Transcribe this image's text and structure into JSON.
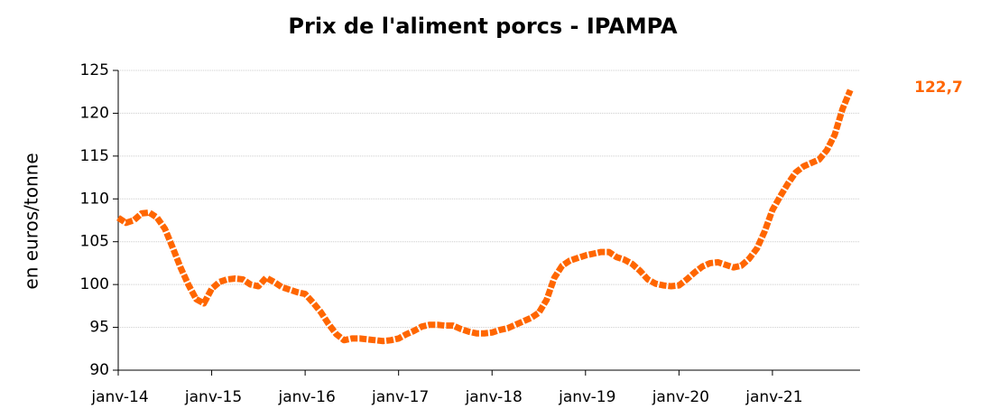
{
  "chart_data": {
    "type": "line",
    "title": "Prix de l'aliment porcs - IPAMPA",
    "y_label": "en euros/tonne",
    "categories": [
      "janv-14",
      null,
      null,
      null,
      null,
      null,
      null,
      null,
      null,
      null,
      null,
      null,
      "janv-15",
      null,
      null,
      null,
      null,
      null,
      null,
      null,
      null,
      null,
      null,
      null,
      "janv-16",
      null,
      null,
      null,
      null,
      null,
      null,
      null,
      null,
      null,
      null,
      null,
      "janv-17",
      null,
      null,
      null,
      null,
      null,
      null,
      null,
      null,
      null,
      null,
      null,
      "janv-18",
      null,
      null,
      null,
      null,
      null,
      null,
      null,
      null,
      null,
      null,
      null,
      "janv-19",
      null,
      null,
      null,
      null,
      null,
      null,
      null,
      null,
      null,
      null,
      null,
      "janv-20",
      null,
      null,
      null,
      null,
      null,
      null,
      null,
      null,
      null,
      null,
      null,
      "janv-21",
      null,
      null,
      null,
      null,
      null,
      null,
      null,
      null,
      null,
      null
    ],
    "values": [
      107.8,
      107.2,
      107.5,
      108.3,
      108.4,
      107.8,
      106.5,
      104.3,
      102,
      100,
      98.3,
      97.8,
      99.5,
      100.3,
      100.6,
      100.7,
      100.6,
      100,
      99.8,
      100.8,
      100.3,
      99.7,
      99.4,
      99.1,
      98.9,
      97.9,
      96.8,
      95.4,
      94.2,
      93.5,
      93.7,
      93.7,
      93.6,
      93.5,
      93.4,
      93.5,
      93.7,
      94.2,
      94.6,
      95.1,
      95.3,
      95.3,
      95.2,
      95.2,
      94.8,
      94.5,
      94.3,
      94.3,
      94.4,
      94.7,
      94.9,
      95.3,
      95.7,
      96.1,
      96.7,
      98.2,
      100.8,
      102.2,
      102.8,
      103.1,
      103.4,
      103.6,
      103.8,
      103.8,
      103.2,
      102.9,
      102.4,
      101.6,
      100.6,
      100.1,
      99.9,
      99.8,
      99.9,
      100.6,
      101.4,
      102.1,
      102.5,
      102.6,
      102.3,
      102,
      102.2,
      103,
      104.2,
      106.2,
      108.7,
      110.3,
      111.8,
      113.1,
      113.8,
      114.2,
      114.6,
      115.7,
      117.5,
      120.5,
      122.7
    ],
    "value_labels": [
      null,
      null,
      null,
      null,
      null,
      null,
      null,
      null,
      null,
      null,
      null,
      null,
      null,
      null,
      null,
      null,
      null,
      null,
      null,
      null,
      null,
      null,
      null,
      null,
      null,
      null,
      null,
      null,
      null,
      null,
      null,
      null,
      null,
      null,
      null,
      null,
      null,
      null,
      null,
      null,
      null,
      null,
      null,
      null,
      null,
      null,
      null,
      null,
      null,
      null,
      null,
      null,
      null,
      null,
      null,
      null,
      null,
      null,
      null,
      null,
      null,
      null,
      null,
      null,
      null,
      null,
      null,
      null,
      null,
      null,
      null,
      null,
      null,
      null,
      null,
      null,
      null,
      null,
      null,
      null,
      null,
      null,
      null,
      null,
      null,
      null,
      null,
      null,
      null,
      null,
      null,
      null,
      null,
      null,
      "122,7"
    ],
    "color": "#ff6600",
    "ylim": [
      90,
      125
    ],
    "yticks": [
      90,
      95,
      100,
      105,
      110,
      115,
      120,
      125
    ],
    "grid": true
  }
}
